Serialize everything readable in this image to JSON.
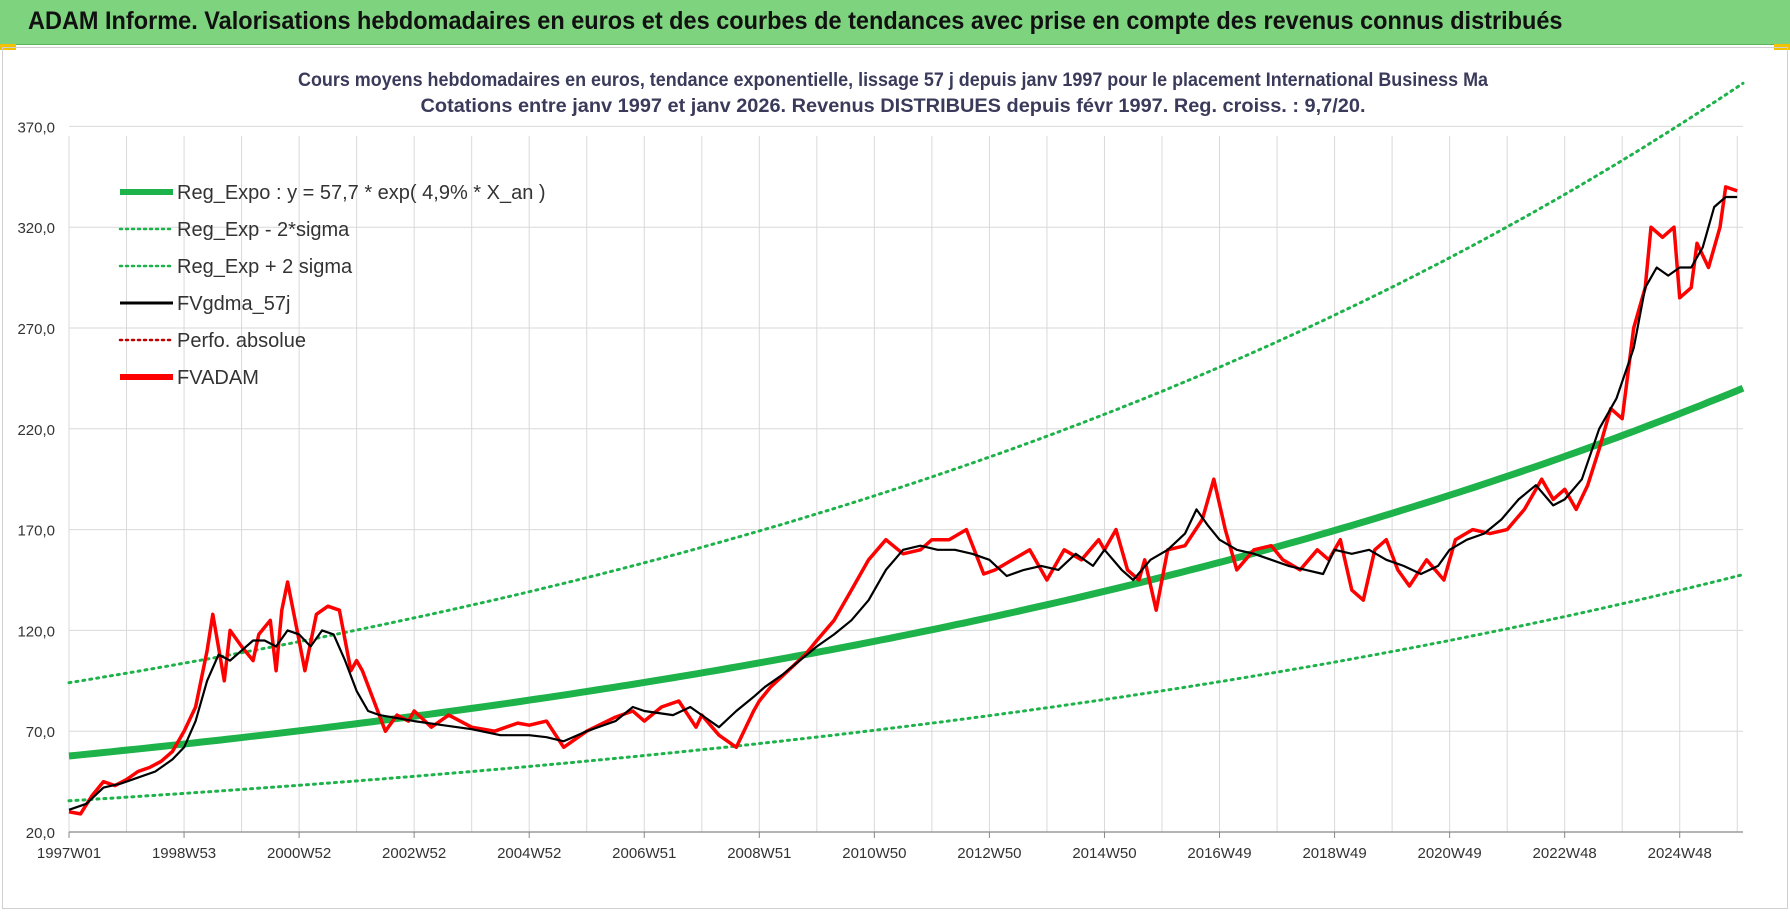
{
  "banner": {
    "title": "ADAM Informe. Valorisations hebdomadaires en euros et des courbes de tendances avec prise en compte des revenus connus distribués"
  },
  "colors": {
    "banner_bg": "#7ed37e",
    "reg_green": "#1db24a",
    "fv_black": "#000000",
    "adam_red": "#ff0000",
    "perfo_red": "#c00000",
    "grid": "#d9d9d9"
  },
  "chart_data": {
    "type": "line",
    "title_line1": "Cours moyens hebdomadaires en euros, tendance exponentielle, lissage 57 j depuis janv 1997  pour le placement International Business Ma",
    "title_line2": "Cotations entre janv 1997 et janv 2026. Revenus DISTRIBUES depuis févr 1997. Reg. croiss. : 9,7/20.",
    "xlabel": "",
    "ylabel": "",
    "x_range": [
      1997.0,
      2026.1
    ],
    "ylim": [
      20,
      395
    ],
    "y_ticks": [
      "20,0",
      "70,0",
      "120,0",
      "170,0",
      "220,0",
      "270,0",
      "320,0",
      "370,0"
    ],
    "x_ticks": [
      {
        "label": "1997W01",
        "x": 1997.0
      },
      {
        "label": "1998W53",
        "x": 1999.0
      },
      {
        "label": "2000W52",
        "x": 2001.0
      },
      {
        "label": "2002W52",
        "x": 2003.0
      },
      {
        "label": "2004W52",
        "x": 2005.0
      },
      {
        "label": "2006W51",
        "x": 2007.0
      },
      {
        "label": "2008W51",
        "x": 2009.0
      },
      {
        "label": "2010W50",
        "x": 2011.0
      },
      {
        "label": "2012W50",
        "x": 2013.0
      },
      {
        "label": "2014W50",
        "x": 2015.0
      },
      {
        "label": "2016W49",
        "x": 2017.0
      },
      {
        "label": "2018W49",
        "x": 2019.0
      },
      {
        "label": "2020W49",
        "x": 2021.0
      },
      {
        "label": "2022W48",
        "x": 2023.0
      },
      {
        "label": "2024W48",
        "x": 2025.0
      }
    ],
    "grid": true,
    "legend_position": "top-left",
    "regression": {
      "a": 57.7,
      "b": 0.049,
      "x0": 1997.0,
      "x_end": 2026.1,
      "sigma_low_factor": 0.615,
      "sigma_high_factor": 1.63
    },
    "series": [
      {
        "name": "Reg_Expo : y = 57,7 * exp( 4,9% *  X_an )",
        "style": "solid-thick",
        "color": "#1db24a"
      },
      {
        "name": "Reg_Exp - 2*sigma",
        "style": "dotted",
        "color": "#1db24a"
      },
      {
        "name": "Reg_Exp + 2 sigma",
        "style": "dotted",
        "color": "#1db24a"
      },
      {
        "name": "FVgdma_57j",
        "style": "solid",
        "color": "#000000",
        "x": [
          1997.0,
          1997.3,
          1997.6,
          1997.9,
          1998.2,
          1998.5,
          1998.8,
          1999.0,
          1999.2,
          1999.4,
          1999.6,
          1999.8,
          2000.0,
          2000.2,
          2000.4,
          2000.6,
          2000.8,
          2001.0,
          2001.2,
          2001.4,
          2001.6,
          2001.8,
          2002.0,
          2002.2,
          2002.4,
          2002.6,
          2002.8,
          2003.0,
          2003.5,
          2004.0,
          2004.5,
          2005.0,
          2005.3,
          2005.6,
          2006.0,
          2006.5,
          2006.8,
          2007.0,
          2007.5,
          2007.8,
          2008.0,
          2008.3,
          2008.6,
          2008.9,
          2009.1,
          2009.4,
          2009.7,
          2010.0,
          2010.3,
          2010.6,
          2010.9,
          2011.2,
          2011.5,
          2011.8,
          2012.1,
          2012.4,
          2012.7,
          2013.0,
          2013.3,
          2013.6,
          2013.9,
          2014.2,
          2014.5,
          2014.8,
          2015.0,
          2015.3,
          2015.5,
          2015.8,
          2016.1,
          2016.4,
          2016.6,
          2016.8,
          2017.0,
          2017.3,
          2017.6,
          2017.9,
          2018.2,
          2018.5,
          2018.8,
          2019.0,
          2019.3,
          2019.6,
          2019.9,
          2020.2,
          2020.5,
          2020.8,
          2021.0,
          2021.3,
          2021.6,
          2021.9,
          2022.2,
          2022.5,
          2022.8,
          2023.0,
          2023.3,
          2023.6,
          2023.9,
          2024.2,
          2024.4,
          2024.6,
          2024.8,
          2025.0,
          2025.2,
          2025.4,
          2025.6,
          2025.8,
          2026.0
        ],
        "y": [
          31,
          34,
          42,
          44,
          47,
          50,
          56,
          62,
          75,
          95,
          108,
          105,
          110,
          115,
          115,
          112,
          120,
          118,
          112,
          120,
          118,
          105,
          90,
          80,
          78,
          77,
          76,
          75,
          73,
          71,
          68,
          68,
          67,
          65,
          70,
          75,
          82,
          80,
          78,
          82,
          78,
          72,
          80,
          87,
          92,
          98,
          105,
          112,
          118,
          125,
          135,
          150,
          160,
          162,
          160,
          160,
          158,
          155,
          147,
          150,
          152,
          150,
          158,
          152,
          160,
          150,
          145,
          155,
          160,
          168,
          180,
          172,
          165,
          160,
          158,
          155,
          152,
          150,
          148,
          160,
          158,
          160,
          155,
          152,
          148,
          152,
          160,
          165,
          168,
          175,
          185,
          192,
          182,
          185,
          195,
          220,
          235,
          260,
          290,
          300,
          296,
          300,
          300,
          310,
          330,
          335,
          335
        ]
      },
      {
        "name": "Perfo. absolue",
        "style": "dotted",
        "color": "#c00000"
      },
      {
        "name": "FVADAM",
        "style": "solid-thick",
        "color": "#ff0000",
        "x": [
          1997.0,
          1997.2,
          1997.4,
          1997.6,
          1997.8,
          1998.0,
          1998.2,
          1998.4,
          1998.6,
          1998.8,
          1999.0,
          1999.2,
          1999.4,
          1999.5,
          1999.7,
          1999.8,
          2000.0,
          2000.2,
          2000.3,
          2000.5,
          2000.6,
          2000.7,
          2000.8,
          2001.0,
          2001.1,
          2001.3,
          2001.5,
          2001.7,
          2001.9,
          2002.0,
          2002.1,
          2002.3,
          2002.5,
          2002.7,
          2002.9,
          2003.0,
          2003.3,
          2003.6,
          2004.0,
          2004.4,
          2004.8,
          2005.0,
          2005.3,
          2005.6,
          2006.0,
          2006.5,
          2006.8,
          2007.0,
          2007.3,
          2007.6,
          2007.9,
          2008.0,
          2008.3,
          2008.6,
          2008.9,
          2009.0,
          2009.2,
          2009.5,
          2009.8,
          2010.0,
          2010.3,
          2010.6,
          2010.9,
          2011.2,
          2011.5,
          2011.8,
          2012.0,
          2012.3,
          2012.6,
          2012.9,
          2013.1,
          2013.4,
          2013.7,
          2014.0,
          2014.3,
          2014.6,
          2014.9,
          2015.0,
          2015.2,
          2015.4,
          2015.6,
          2015.7,
          2015.9,
          2016.1,
          2016.4,
          2016.7,
          2016.9,
          2017.1,
          2017.3,
          2017.6,
          2017.9,
          2018.1,
          2018.4,
          2018.7,
          2018.9,
          2019.1,
          2019.3,
          2019.5,
          2019.7,
          2019.9,
          2020.1,
          2020.3,
          2020.6,
          2020.9,
          2021.1,
          2021.4,
          2021.7,
          2022.0,
          2022.3,
          2022.6,
          2022.8,
          2023.0,
          2023.2,
          2023.4,
          2023.6,
          2023.8,
          2024.0,
          2024.2,
          2024.4,
          2024.5,
          2024.7,
          2024.9,
          2025.0,
          2025.2,
          2025.3,
          2025.5,
          2025.7,
          2025.8,
          2026.0
        ],
        "y": [
          30,
          29,
          38,
          45,
          43,
          46,
          50,
          52,
          55,
          60,
          70,
          82,
          110,
          128,
          95,
          120,
          112,
          105,
          118,
          125,
          100,
          130,
          144,
          115,
          100,
          128,
          132,
          130,
          100,
          105,
          100,
          85,
          70,
          78,
          75,
          80,
          72,
          78,
          72,
          70,
          74,
          73,
          75,
          62,
          70,
          77,
          80,
          75,
          82,
          85,
          72,
          78,
          68,
          62,
          80,
          85,
          92,
          100,
          108,
          115,
          125,
          140,
          155,
          165,
          158,
          160,
          165,
          165,
          170,
          148,
          150,
          155,
          160,
          145,
          160,
          155,
          165,
          160,
          170,
          150,
          145,
          155,
          130,
          160,
          162,
          175,
          195,
          170,
          150,
          160,
          162,
          155,
          150,
          160,
          155,
          165,
          140,
          135,
          160,
          165,
          150,
          142,
          155,
          145,
          165,
          170,
          168,
          170,
          180,
          195,
          185,
          190,
          180,
          192,
          210,
          230,
          225,
          270,
          290,
          320,
          315,
          320,
          285,
          290,
          312,
          300,
          320,
          340,
          338
        ]
      }
    ]
  }
}
